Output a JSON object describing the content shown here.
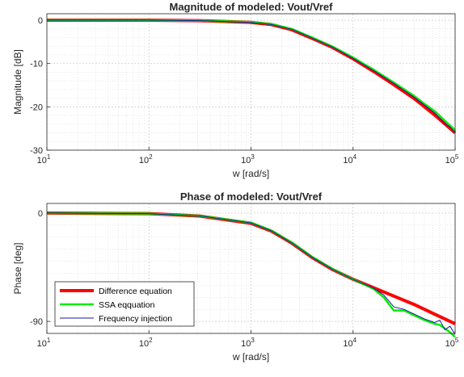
{
  "chart_data": [
    {
      "type": "line",
      "title": "Magnitude of modeled: Vout/Vref",
      "xlabel": "w [rad/s]",
      "ylabel": "Magnitude [dB]",
      "xscale": "log",
      "xlim": [
        10,
        100000
      ],
      "ylim": [
        -30,
        1.5
      ],
      "xticks": [
        10,
        100,
        1000,
        10000,
        100000
      ],
      "xtick_base": "10",
      "xtick_exponents": [
        "1",
        "2",
        "3",
        "4",
        "5"
      ],
      "yticks": [
        0,
        -10,
        -20,
        -30
      ],
      "ytick_labels": [
        "0",
        "-10",
        "-20",
        "-30"
      ],
      "grid": true,
      "minor_grid": true,
      "legend": null,
      "series": [
        {
          "color": "#ff0000",
          "x": [
            10,
            100,
            316,
            1000,
            1585,
            2512,
            3981,
            6310,
            10000,
            15849,
            25119,
            39811,
            63096,
            100000
          ],
          "y": [
            0,
            0,
            -0.1,
            -0.5,
            -1.0,
            -2.2,
            -4.2,
            -6.3,
            -8.9,
            -11.8,
            -14.9,
            -18.1,
            -21.9,
            -26.0
          ]
        },
        {
          "color": "#00ee00",
          "x": [
            10,
            100,
            316,
            1000,
            1585,
            2512,
            3981,
            6310,
            10000,
            15849,
            25119,
            39811,
            50119,
            63096,
            79433,
            100000
          ],
          "y": [
            0,
            0,
            -0.1,
            -0.4,
            -0.9,
            -2.0,
            -4.0,
            -6.1,
            -8.6,
            -11.4,
            -14.4,
            -17.5,
            -19.3,
            -21.0,
            -23.2,
            -25.4
          ]
        },
        {
          "color": "#1a1aa6",
          "x": [
            10,
            100,
            316,
            1000,
            1585,
            2512,
            3981,
            6310,
            10000,
            15849,
            25119,
            39811,
            50119,
            63096,
            79433,
            89125,
            100000
          ],
          "y": [
            0,
            0,
            -0.1,
            -0.5,
            -1.0,
            -2.1,
            -4.1,
            -6.2,
            -8.8,
            -11.6,
            -14.6,
            -17.8,
            -19.6,
            -21.4,
            -23.9,
            -24.6,
            -26.0
          ]
        }
      ]
    },
    {
      "type": "line",
      "title": "Phase of modeled: Vout/Vref",
      "xlabel": "w [rad/s]",
      "ylabel": "Phase [deg]",
      "xscale": "log",
      "xlim": [
        10,
        100000
      ],
      "ylim": [
        -100,
        8
      ],
      "xticks": [
        10,
        100,
        1000,
        10000,
        100000
      ],
      "xtick_base": "10",
      "xtick_exponents": [
        "1",
        "2",
        "3",
        "4",
        "5"
      ],
      "yticks": [
        0,
        -90
      ],
      "ytick_labels": [
        "0",
        "-90"
      ],
      "grid": true,
      "minor_grid": true,
      "legend": "bottom-left",
      "series": [
        {
          "name": "Difference equation",
          "color": "#ff0000",
          "x": [
            10,
            100,
            316,
            1000,
            1585,
            2512,
            3981,
            6310,
            10000,
            15849,
            25119,
            39811,
            63096,
            100000
          ],
          "y": [
            0,
            -0.5,
            -2.5,
            -8.5,
            -15,
            -25,
            -37,
            -47,
            -55,
            -62,
            -69,
            -76,
            -84,
            -92
          ]
        },
        {
          "name": "SSA eqquation",
          "color": "#00ee00",
          "x": [
            10,
            100,
            316,
            1000,
            1585,
            2512,
            3981,
            6310,
            10000,
            15849,
            19953,
            25119,
            31623,
            39811,
            50119,
            63096,
            70795,
            79433,
            89125,
            100000
          ],
          "y": [
            0,
            -0.5,
            -2.3,
            -8,
            -14.5,
            -24.5,
            -36.5,
            -46.5,
            -55,
            -63,
            -70,
            -81,
            -81,
            -85,
            -89,
            -92,
            -93,
            -96,
            -99,
            -103
          ]
        },
        {
          "name": "Frequency injection",
          "color": "#1a1aa6",
          "x": [
            10,
            100,
            316,
            1000,
            1585,
            2512,
            3981,
            6310,
            10000,
            15849,
            19953,
            25119,
            31623,
            39811,
            50119,
            63096,
            70795,
            79433,
            89125,
            100000
          ],
          "y": [
            0,
            -0.5,
            -2.4,
            -8.2,
            -14.8,
            -24.8,
            -36.8,
            -46.8,
            -55,
            -62.5,
            -68,
            -78,
            -80,
            -84,
            -88,
            -91,
            -89,
            -97,
            -94,
            -101
          ]
        }
      ]
    }
  ]
}
